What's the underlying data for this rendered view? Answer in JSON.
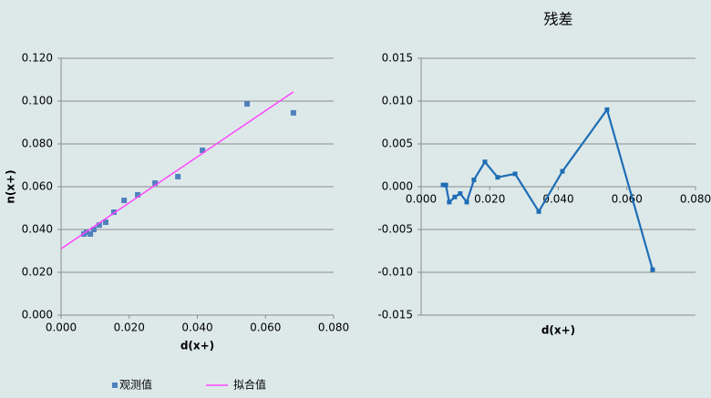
{
  "chart_data": [
    {
      "type": "scatter",
      "xlabel": "d(x+)",
      "ylabel": "n(x+)",
      "xlim": [
        0,
        0.08
      ],
      "xticks": [
        {
          "value": 0,
          "label": "0.000"
        },
        {
          "value": 0.02,
          "label": "0.020"
        },
        {
          "value": 0.04,
          "label": "0.040"
        },
        {
          "value": 0.06,
          "label": "0.060"
        },
        {
          "value": 0.08,
          "label": "0.080"
        }
      ],
      "ylim": [
        0,
        0.12
      ],
      "yticks": [
        {
          "value": 0,
          "label": "0.000"
        },
        {
          "value": 0.02,
          "label": "0.020"
        },
        {
          "value": 0.04,
          "label": "0.040"
        },
        {
          "value": 0.06,
          "label": "0.060"
        },
        {
          "value": 0.08,
          "label": "0.080"
        },
        {
          "value": 0.1,
          "label": "0.100"
        },
        {
          "value": 0.12,
          "label": "0.120"
        }
      ],
      "grid": true,
      "legend": "bottom",
      "series": [
        {
          "name": "观测值",
          "color": "#4f81bd",
          "style": "markers",
          "x": [
            0.0067,
            0.0075,
            0.0086,
            0.0096,
            0.0112,
            0.0131,
            0.0155,
            0.0185,
            0.0225,
            0.0276,
            0.0343,
            0.0415,
            0.0546,
            0.0682
          ],
          "values": [
            0.0379,
            0.0387,
            0.0379,
            0.04,
            0.0421,
            0.0434,
            0.0481,
            0.0536,
            0.0562,
            0.0617,
            0.0647,
            0.077,
            0.0987,
            0.0945
          ]
        },
        {
          "name": "拟合值",
          "color": "#ff44ff",
          "style": "line",
          "x": [
            0,
            0.0682
          ],
          "values": [
            0.031,
            0.1043
          ]
        }
      ]
    },
    {
      "type": "line",
      "title": "残差",
      "xlabel": "d(x+)",
      "xlim": [
        0,
        0.08
      ],
      "xticks": [
        {
          "value": 0,
          "label": "0.000"
        },
        {
          "value": 0.02,
          "label": "0.020"
        },
        {
          "value": 0.04,
          "label": "0.040"
        },
        {
          "value": 0.06,
          "label": "0.060"
        },
        {
          "value": 0.08,
          "label": "0.080"
        }
      ],
      "ylim": [
        -0.015,
        0.015
      ],
      "yticks": [
        {
          "value": -0.015,
          "label": "-0.015"
        },
        {
          "value": -0.01,
          "label": "-0.010"
        },
        {
          "value": -0.005,
          "label": "-0.005"
        },
        {
          "value": 0,
          "label": "0.000"
        },
        {
          "value": 0.005,
          "label": "0.005"
        },
        {
          "value": 0.01,
          "label": "0.010"
        },
        {
          "value": 0.015,
          "label": "0.015"
        }
      ],
      "grid": true,
      "series": [
        {
          "color": "#1f6db5",
          "style": "line-markers",
          "x": [
            0.0064,
            0.0072,
            0.0082,
            0.0098,
            0.0114,
            0.0133,
            0.0154,
            0.0186,
            0.0223,
            0.0274,
            0.0343,
            0.0412,
            0.0542,
            0.0675
          ],
          "values": [
            0.0002,
            0.0002,
            -0.0018,
            -0.0012,
            -0.0008,
            -0.0018,
            0.0008,
            0.0029,
            0.0011,
            0.0015,
            -0.0029,
            0.0018,
            0.009,
            -0.0097
          ]
        }
      ]
    }
  ]
}
